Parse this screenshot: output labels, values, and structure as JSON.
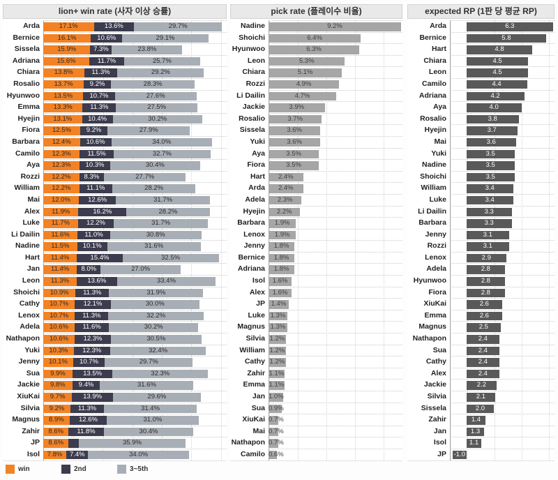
{
  "colors": {
    "win": "#F28224",
    "second": "#3C3C4E",
    "rest": "#A8AEB5",
    "pick_bar": "#A6A6A6",
    "rp_bar": "#595959",
    "title_bg": "#E9E9E9",
    "axis_line": "#9B9B9B",
    "grid_dotted": "#D2D2D2"
  },
  "legend": {
    "items": [
      {
        "label": "win",
        "color": "#F28224"
      },
      {
        "label": "2nd",
        "color": "#3C3C4E"
      },
      {
        "label": "3~5th",
        "color": "#A8AEB5"
      }
    ]
  },
  "chart_data": [
    {
      "type": "bar",
      "orientation": "horizontal",
      "stacked": true,
      "title": "lion+ win rate (사자 이상 승률)",
      "xlim": [
        0,
        62
      ],
      "grid_step": 10,
      "legend_position": "bottom-left",
      "categories": [
        "Arda",
        "Bernice",
        "Sissela",
        "Adriana",
        "Chiara",
        "Rosalio",
        "Hyunwoo",
        "Emma",
        "Hyejin",
        "Fiora",
        "Barbara",
        "Camilo",
        "Aya",
        "Rozzi",
        "William",
        "Mai",
        "Alex",
        "Luke",
        "Li Dailin",
        "Nadine",
        "Hart",
        "Jan",
        "Leon",
        "Shoichi",
        "Cathy",
        "Lenox",
        "Adela",
        "Nathapon",
        "Yuki",
        "Jenny",
        "Sua",
        "Jackie",
        "XiuKai",
        "Silvia",
        "Magnus",
        "Zahir",
        "JP",
        "Isol"
      ],
      "series": [
        {
          "name": "win",
          "color": "#F28224",
          "label_color": "#2b2b2b",
          "values": [
            17.1,
            16.1,
            15.9,
            15.6,
            13.8,
            13.7,
            13.5,
            13.3,
            13.1,
            12.5,
            12.4,
            12.3,
            12.3,
            12.2,
            12.2,
            12.0,
            11.9,
            11.7,
            11.6,
            11.5,
            11.4,
            11.4,
            11.3,
            10.9,
            10.7,
            10.7,
            10.6,
            10.6,
            10.3,
            10.1,
            9.9,
            9.8,
            9.7,
            9.2,
            8.9,
            8.6,
            8.6,
            7.8
          ],
          "labels": [
            "17.1%",
            "16.1%",
            "15.9%",
            "15.6%",
            "13.8%",
            "13.7%",
            "13.5%",
            "13.3%",
            "13.1%",
            "12.5%",
            "12.4%",
            "12.3%",
            "12.3%",
            "12.2%",
            "12.2%",
            "12.0%",
            "11.9%",
            "11.7%",
            "11.6%",
            "11.5%",
            "11.4%",
            "11.4%",
            "11.3%",
            "10.9%",
            "10.7%",
            "10.7%",
            "10.6%",
            "10.6%",
            "10.3%",
            "10.1%",
            "9.9%",
            "9.8%",
            "9.7%",
            "9.2%",
            "8.9%",
            "8.6%",
            "8.6%",
            "7.8%"
          ]
        },
        {
          "name": "2nd",
          "color": "#3C3C4E",
          "label_color": "#ffffff",
          "values": [
            13.6,
            10.6,
            7.3,
            11.7,
            11.3,
            9.2,
            10.7,
            11.3,
            10.4,
            9.2,
            10.6,
            11.5,
            10.3,
            8.3,
            11.1,
            12.6,
            16.2,
            12.2,
            11.0,
            10.1,
            15.4,
            8.0,
            13.6,
            11.3,
            12.1,
            11.3,
            11.6,
            12.3,
            12.3,
            10.7,
            13.5,
            9.4,
            13.9,
            11.3,
            12.6,
            11.8,
            3.5,
            7.4
          ],
          "labels": [
            "13.6%",
            "10.6%",
            "7.3%",
            "11.7%",
            "11.3%",
            "9.2%",
            "10.7%",
            "11.3%",
            "10.4%",
            "9.2%",
            "10.6%",
            "11.5%",
            "10.3%",
            "8.3%",
            "11.1%",
            "12.6%",
            "16.2%",
            "12.2%",
            "11.0%",
            "10.1%",
            "15.4%",
            "8.0%",
            "13.6%",
            "11.3%",
            "12.1%",
            "11.3%",
            "11.6%",
            "12.3%",
            "12.3%",
            "10.7%",
            "13.5%",
            "9.4%",
            "13.9%",
            "11.3%",
            "12.6%",
            "11.8%",
            "",
            "7.4%"
          ]
        },
        {
          "name": "3~5th",
          "color": "#A8AEB5",
          "label_color": "#2b2b2b",
          "values": [
            29.7,
            29.1,
            23.8,
            25.7,
            29.2,
            28.3,
            27.6,
            27.5,
            30.2,
            27.9,
            34.0,
            32.7,
            30.4,
            27.7,
            28.2,
            31.7,
            28.2,
            31.7,
            30.8,
            31.6,
            32.5,
            27.0,
            33.4,
            31.9,
            30.0,
            32.2,
            30.2,
            30.5,
            32.4,
            29.7,
            32.3,
            31.6,
            29.6,
            31.4,
            31.0,
            30.4,
            35.9,
            34.0
          ],
          "labels": [
            "29.7%",
            "29.1%",
            "23.8%",
            "25.7%",
            "29.2%",
            "28.3%",
            "27.6%",
            "27.5%",
            "30.2%",
            "27.9%",
            "34.0%",
            "32.7%",
            "30.4%",
            "27.7%",
            "28.2%",
            "31.7%",
            "28.2%",
            "31.7%",
            "30.8%",
            "31.6%",
            "32.5%",
            "27.0%",
            "33.4%",
            "31.9%",
            "30.0%",
            "32.2%",
            "30.2%",
            "30.5%",
            "32.4%",
            "29.7%",
            "32.3%",
            "31.6%",
            "29.6%",
            "31.4%",
            "31.0%",
            "30.4%",
            "35.9%",
            "34.0%"
          ]
        }
      ]
    },
    {
      "type": "bar",
      "orientation": "horizontal",
      "stacked": false,
      "title": "pick rate (플레이수 비율)",
      "xlim": [
        0,
        9.3
      ],
      "grid_step": 2,
      "bar_color": "#A6A6A6",
      "label_color": "#3f3f3f",
      "categories": [
        "Nadine",
        "Shoichi",
        "Hyunwoo",
        "Leon",
        "Chiara",
        "Rozzi",
        "Li Dailin",
        "Jackie",
        "Rosalio",
        "Sissela",
        "Yuki",
        "Aya",
        "Fiora",
        "Hart",
        "Arda",
        "Adela",
        "Hyejin",
        "Barbara",
        "Lenox",
        "Jenny",
        "Bernice",
        "Adriana",
        "Isol",
        "Alex",
        "JP",
        "Luke",
        "Magnus",
        "Silvia",
        "William",
        "Cathy",
        "Zahir",
        "Emma",
        "Jan",
        "Sua",
        "XiuKai",
        "Mai",
        "Nathapon",
        "Camilo"
      ],
      "values": [
        9.2,
        6.4,
        6.3,
        5.3,
        5.1,
        4.9,
        4.7,
        3.9,
        3.7,
        3.6,
        3.6,
        3.5,
        3.5,
        2.4,
        2.4,
        2.3,
        2.2,
        1.9,
        1.9,
        1.8,
        1.8,
        1.8,
        1.6,
        1.6,
        1.4,
        1.3,
        1.3,
        1.2,
        1.2,
        1.2,
        1.1,
        1.1,
        1.0,
        0.9,
        0.7,
        0.7,
        0.7,
        0.6
      ],
      "labels": [
        "9.2%",
        "6.4%",
        "6.3%",
        "5.3%",
        "5.1%",
        "4.9%",
        "4.7%",
        "3.9%",
        "3.7%",
        "3.6%",
        "3.6%",
        "3.5%",
        "3.5%",
        "2.4%",
        "2.4%",
        "2.3%",
        "2.2%",
        "1.9%",
        "1.9%",
        "1.8%",
        "1.8%",
        "1.8%",
        "1.6%",
        "1.6%",
        "1.4%",
        "1.3%",
        "1.3%",
        "1.2%",
        "1.2%",
        "1.2%",
        "1.1%",
        "1.1%",
        "1.0%",
        "0.9%",
        "0.7%",
        "0.7%",
        "0.7%",
        "0.6%"
      ]
    },
    {
      "type": "bar",
      "orientation": "horizontal",
      "stacked": false,
      "title": "expected RP (1판 당 평균 RP)",
      "xlim": [
        -1.2,
        6.4
      ],
      "grid_step": 2,
      "bar_color": "#595959",
      "label_color": "#ffffff",
      "categories": [
        "Arda",
        "Bernice",
        "Hart",
        "Chiara",
        "Leon",
        "Camilo",
        "Adriana",
        "Aya",
        "Rosalio",
        "Hyejin",
        "Mai",
        "Yuki",
        "Nadine",
        "Shoichi",
        "William",
        "Luke",
        "Li Dailin",
        "Barbara",
        "Jenny",
        "Rozzi",
        "Lenox",
        "Adela",
        "Hyunwoo",
        "Fiora",
        "XiuKai",
        "Emma",
        "Magnus",
        "Nathapon",
        "Sua",
        "Cathy",
        "Alex",
        "Jackie",
        "Silvia",
        "Sissela",
        "Zahir",
        "Jan",
        "Isol",
        "JP"
      ],
      "values": [
        6.3,
        5.8,
        4.8,
        4.5,
        4.5,
        4.4,
        4.2,
        4.0,
        3.8,
        3.7,
        3.6,
        3.5,
        3.5,
        3.5,
        3.4,
        3.4,
        3.3,
        3.3,
        3.1,
        3.1,
        2.9,
        2.8,
        2.8,
        2.8,
        2.6,
        2.6,
        2.5,
        2.4,
        2.4,
        2.4,
        2.4,
        2.2,
        2.1,
        2.0,
        1.4,
        1.3,
        1.1,
        -1.0
      ],
      "labels": [
        "6.3",
        "5.8",
        "4.8",
        "4.5",
        "4.5",
        "4.4",
        "4.2",
        "4.0",
        "3.8",
        "3.7",
        "3.6",
        "3.5",
        "3.5",
        "3.5",
        "3.4",
        "3.4",
        "3.3",
        "3.3",
        "3.1",
        "3.1",
        "2.9",
        "2.8",
        "2.8",
        "2.8",
        "2.6",
        "2.6",
        "2.5",
        "2.4",
        "2.4",
        "2.4",
        "2.4",
        "2.2",
        "2.1",
        "2.0",
        "1.4",
        "1.3",
        "1.1",
        "-1.0"
      ]
    }
  ]
}
